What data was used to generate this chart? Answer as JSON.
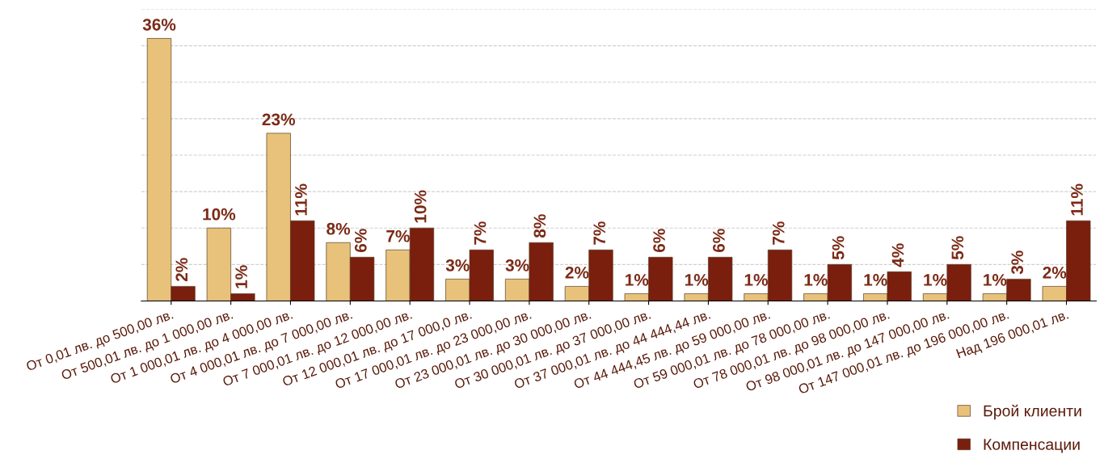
{
  "chart_data": {
    "type": "bar",
    "categories": [
      "От 0,01 лв. до 500,00 лв.",
      "От 500,01 лв. до 1 000,00 лв.",
      "От 1 000,01 лв. до 4 000,00 лв.",
      "От 4 000,01 лв. до 7 000,00 лв.",
      "От 7 000,01 лв. до 12 000,00 лв.",
      "От 12 000,01 лв. до 17 000,0 лв.",
      "От 17 000,01 лв. до 23 000,00 лв.",
      "От 23 000,01 лв. до 30 000,00 лв.",
      "От 30 000,01 лв. до 37 000,00 лв.",
      "От 37 000,01 лв. до 44 444,44 лв.",
      "От 44 444,45 лв. до 59 000,00 лв.",
      "От 59 000,01 лв. до 78 000,00 лв.",
      "От 78 000,01 лв. до 98 000,00 лв.",
      "От 98 000,01 лв. до 147 000,00 лв.",
      "От 147 000,01 лв. до 196 000,00 лв.",
      "Над 196 000,01 лв."
    ],
    "series": [
      {
        "name": "Брой клиенти",
        "color": "#e8c27a",
        "values": [
          36,
          10,
          23,
          8,
          7,
          3,
          3,
          2,
          1,
          1,
          1,
          1,
          1,
          1,
          1,
          2
        ],
        "value_labels": [
          "36%",
          "10%",
          "23%",
          "8%",
          "7%",
          "3%",
          "3%",
          "2%",
          "1%",
          "1%",
          "1%",
          "1%",
          "1%",
          "1%",
          "1%",
          "2%"
        ]
      },
      {
        "name": "Компенсации",
        "color": "#7a1e0e",
        "values": [
          2,
          1,
          11,
          6,
          10,
          7,
          8,
          7,
          6,
          6,
          7,
          5,
          4,
          5,
          3,
          11
        ],
        "value_labels": [
          "2%",
          "1%",
          "11%",
          "6%",
          "10%",
          "7%",
          "8%",
          "7%",
          "6%",
          "6%",
          "7%",
          "5%",
          "4%",
          "5%",
          "3%",
          "11%"
        ]
      }
    ],
    "ylim": [
      0,
      40
    ],
    "yticks": [
      {
        "value": 0,
        "label": null
      },
      {
        "value": 5,
        "label": null
      },
      {
        "value": 10,
        "label": null
      },
      {
        "value": 15,
        "label": null
      },
      {
        "value": 20,
        "label": null
      },
      {
        "value": 25,
        "label": null
      },
      {
        "value": 30,
        "label": null
      },
      {
        "value": 35,
        "label": null
      },
      {
        "value": 40,
        "label": null
      }
    ],
    "tick_labels": "x",
    "grid": "y",
    "legend": "bottom right"
  }
}
